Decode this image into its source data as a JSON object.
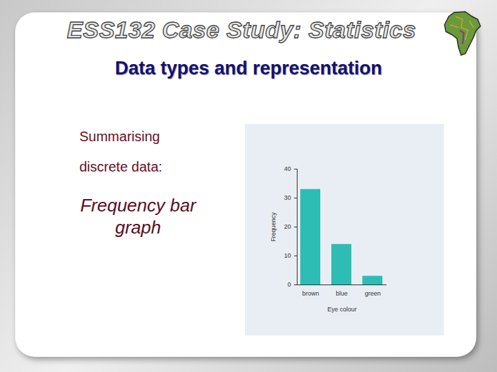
{
  "header": {
    "title": "ESS132 Case Study: Statistics",
    "subtitle": "Data types and representation"
  },
  "body": {
    "lines": [
      "Summarising",
      "discrete data:"
    ],
    "emphasis": "Frequency bar graph"
  },
  "chart_data": {
    "type": "bar",
    "categories": [
      "brown",
      "blue",
      "green"
    ],
    "values": [
      33,
      14,
      3
    ],
    "color": "#2ebdb5",
    "xlabel": "Eye colour",
    "ylabel": "Frequency",
    "ylim": [
      0,
      40
    ],
    "yticks": [
      0,
      10,
      20,
      30,
      40
    ],
    "grid": false
  }
}
